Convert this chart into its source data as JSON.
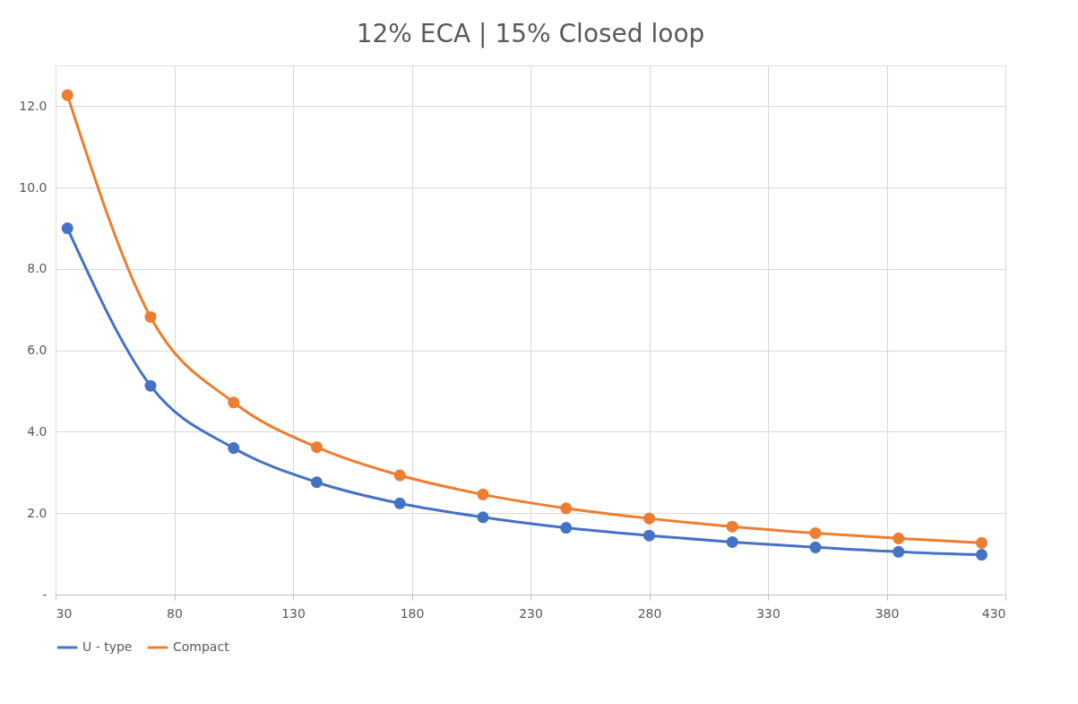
{
  "chart_data": {
    "type": "line",
    "title": "12% ECA | 15% Closed loop",
    "x": [
      35,
      70,
      105,
      140,
      175,
      210,
      245,
      280,
      315,
      350,
      385,
      420
    ],
    "series": [
      {
        "name": "U - type",
        "color": "#4472c4",
        "values": [
          9.0,
          5.13,
          3.6,
          2.76,
          2.24,
          1.9,
          1.64,
          1.45,
          1.29,
          1.16,
          1.05,
          0.98
        ]
      },
      {
        "name": "Compact",
        "color": "#ed7d31",
        "values": [
          12.27,
          6.82,
          4.72,
          3.62,
          2.93,
          2.46,
          2.12,
          1.87,
          1.67,
          1.51,
          1.38,
          1.27
        ]
      }
    ],
    "xlim": [
      30,
      430
    ],
    "xticks": [
      30,
      80,
      130,
      180,
      230,
      280,
      330,
      380,
      430
    ],
    "ylim": [
      0,
      13
    ],
    "yticks": [
      {
        "value": 0,
        "label": "-"
      },
      {
        "value": 2,
        "label": "2.0"
      },
      {
        "value": 4,
        "label": "4.0"
      },
      {
        "value": 6,
        "label": "6.0"
      },
      {
        "value": 8,
        "label": "8.0"
      },
      {
        "value": 10,
        "label": "10.0"
      },
      {
        "value": 12,
        "label": "12.0"
      }
    ],
    "grid": true,
    "legend": "bottom",
    "marker": "circle",
    "line_style": "solid"
  }
}
